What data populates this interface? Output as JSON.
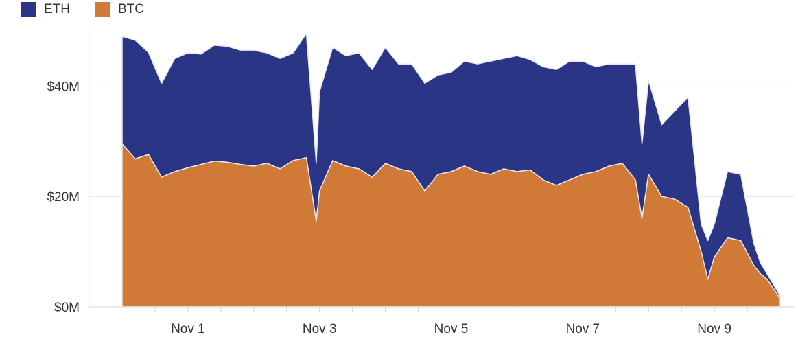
{
  "colors": {
    "eth": "#2b3585",
    "btc": "#d17a38",
    "stroke": "#e7e8ee",
    "grid": "#e5e5e5"
  },
  "chart_data": {
    "type": "area",
    "stacked": true,
    "title": "",
    "xlabel": "",
    "ylabel": "",
    "ylim": [
      0,
      50
    ],
    "yticks": [
      0,
      20,
      40
    ],
    "ytick_labels": [
      "$0M",
      "$20M",
      "$40M"
    ],
    "xlim": [
      0,
      10
    ],
    "xticks": [
      1,
      3,
      5,
      7,
      9
    ],
    "xtick_labels": [
      "Nov 1",
      "Nov 3",
      "Nov 5",
      "Nov 7",
      "Nov 9"
    ],
    "grid": "horizontal",
    "legend_position": "top-left",
    "x": [
      0.0,
      0.2,
      0.4,
      0.6,
      0.8,
      1.0,
      1.2,
      1.4,
      1.6,
      1.8,
      2.0,
      2.2,
      2.4,
      2.6,
      2.8,
      2.95,
      3.0,
      3.2,
      3.4,
      3.6,
      3.8,
      4.0,
      4.2,
      4.4,
      4.6,
      4.8,
      5.0,
      5.2,
      5.4,
      5.6,
      5.8,
      6.0,
      6.2,
      6.4,
      6.6,
      6.8,
      7.0,
      7.2,
      7.4,
      7.6,
      7.8,
      7.9,
      8.0,
      8.2,
      8.4,
      8.6,
      8.8,
      8.9,
      9.0,
      9.2,
      9.4,
      9.6,
      9.7,
      9.8,
      10.0
    ],
    "series": [
      {
        "name": "BTC",
        "values": [
          29.5,
          26.8,
          27.6,
          23.5,
          24.5,
          25.2,
          25.8,
          26.4,
          26.2,
          25.8,
          25.5,
          26.0,
          25.0,
          26.5,
          27.0,
          15.5,
          21.0,
          26.5,
          25.5,
          25.0,
          23.5,
          26.0,
          25.0,
          24.5,
          21.0,
          24.0,
          24.5,
          25.5,
          24.5,
          24.0,
          25.0,
          24.5,
          24.8,
          23.0,
          22.0,
          23.0,
          24.0,
          24.5,
          25.5,
          26.0,
          23.0,
          16.0,
          24.0,
          20.0,
          19.5,
          18.0,
          10.0,
          5.0,
          9.0,
          12.5,
          12.0,
          7.5,
          6.0,
          5.0,
          1.5
        ]
      },
      {
        "name": "ETH",
        "values": [
          19.5,
          21.5,
          18.5,
          17.0,
          20.5,
          20.8,
          20.0,
          21.0,
          21.0,
          20.7,
          21.0,
          20.0,
          20.0,
          19.5,
          22.5,
          10.5,
          18.0,
          20.5,
          20.0,
          21.0,
          19.5,
          21.0,
          19.0,
          19.5,
          19.5,
          18.0,
          18.0,
          19.0,
          19.5,
          20.5,
          20.0,
          21.0,
          20.0,
          20.5,
          21.0,
          21.5,
          20.5,
          19.0,
          18.5,
          18.0,
          21.0,
          13.5,
          17.0,
          13.0,
          16.0,
          20.0,
          5.0,
          7.0,
          6.0,
          12.0,
          12.0,
          4.0,
          2.0,
          1.0,
          0.5
        ]
      }
    ]
  },
  "legend": {
    "items": [
      {
        "label": "ETH"
      },
      {
        "label": "BTC"
      }
    ]
  }
}
